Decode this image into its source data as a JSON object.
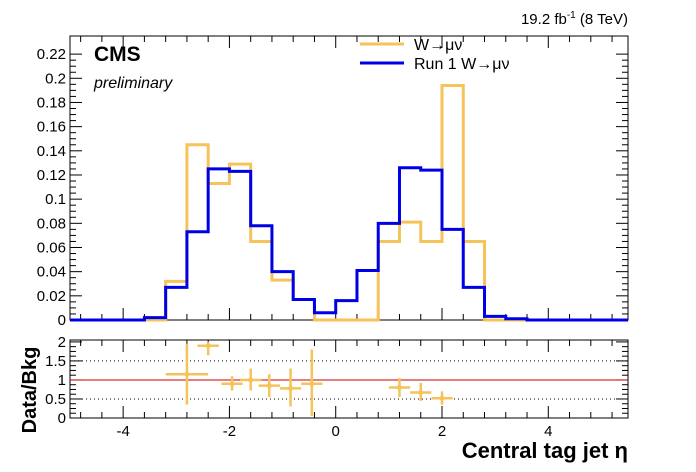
{
  "header": {
    "lumi_prefix": "19.2 fb",
    "lumi_exp": "-1",
    "lumi_suffix": " (8 TeV)",
    "experiment": "CMS",
    "status": "preliminary"
  },
  "colors": {
    "series_1": "#f5c35a",
    "series_2": "#0000e6",
    "ratio_line": "#cc0000"
  },
  "chart_data": [
    {
      "type": "line",
      "subtype": "step-histogram",
      "xlabel": "Central tag jet η",
      "ylabel": "",
      "xlim": [
        -5,
        5.5
      ],
      "ylim": [
        0,
        0.235
      ],
      "x_ticks": [
        -4,
        -2,
        0,
        2,
        4
      ],
      "y_ticks": [
        0,
        0.02,
        0.04,
        0.06,
        0.08,
        0.1,
        0.12,
        0.14,
        0.16,
        0.18,
        0.2,
        0.22
      ],
      "y_tick_labels": [
        "0",
        "0.02",
        "0.04",
        "0.06",
        "0.08",
        "0.1",
        "0.12",
        "0.14",
        "0.16",
        "0.18",
        "0.2",
        "0.22"
      ],
      "legend_position": "top-center",
      "bin_edges": [
        -5.0,
        -3.6,
        -3.2,
        -2.8,
        -2.4,
        -2.0,
        -1.6,
        -1.2,
        -0.8,
        -0.4,
        0.0,
        0.4,
        0.8,
        1.2,
        1.6,
        2.0,
        2.4,
        2.8,
        3.2,
        3.6,
        5.5
      ],
      "series": [
        {
          "name": "W→μν",
          "color": "#f5c35a",
          "values": [
            0,
            0,
            0.032,
            0.145,
            0.113,
            0.129,
            0.065,
            0.033,
            0.017,
            0,
            0,
            0,
            0.065,
            0.081,
            0.065,
            0.194,
            0.065,
            0,
            0,
            0
          ]
        },
        {
          "name": "Run 1 W→μν",
          "color": "#0000e6",
          "values": [
            0,
            0.002,
            0.027,
            0.073,
            0.125,
            0.123,
            0.078,
            0.04,
            0.017,
            0.006,
            0.016,
            0.041,
            0.08,
            0.126,
            0.124,
            0.075,
            0.027,
            0.003,
            0.001,
            0
          ]
        }
      ]
    },
    {
      "type": "scatter",
      "subtype": "ratio-with-error-bars",
      "ylabel": "Data/Bkg",
      "xlabel": "Central tag jet η",
      "xlim": [
        -5,
        5.5
      ],
      "ylim": [
        0,
        2.05
      ],
      "x_ticks": [
        -4,
        -2,
        0,
        2,
        4
      ],
      "y_ticks": [
        0,
        0.5,
        1,
        1.5,
        2
      ],
      "y_tick_labels": [
        "0",
        "0.5",
        "1",
        "1.5",
        "2"
      ],
      "reference_lines": [
        0.5,
        1,
        1.5
      ],
      "series": [
        {
          "name": "",
          "color": "#f5c35a",
          "points": [
            {
              "x": -2.8,
              "y": 1.15,
              "xerr": 0.4,
              "ylo": 0.35,
              "yhi": 1.95
            },
            {
              "x": -2.4,
              "y": 1.9,
              "xerr": 0.2,
              "ylo": 1.65,
              "yhi": 2.0
            },
            {
              "x": -1.95,
              "y": 0.9,
              "xerr": 0.2,
              "ylo": 0.72,
              "yhi": 1.1
            },
            {
              "x": -1.6,
              "y": 1.0,
              "xerr": 0.2,
              "ylo": 0.72,
              "yhi": 1.3
            },
            {
              "x": -1.25,
              "y": 0.85,
              "xerr": 0.2,
              "ylo": 0.55,
              "yhi": 1.15
            },
            {
              "x": -0.85,
              "y": 0.78,
              "xerr": 0.2,
              "ylo": 0.3,
              "yhi": 1.3
            },
            {
              "x": -0.45,
              "y": 0.9,
              "xerr": 0.2,
              "ylo": 0.05,
              "yhi": 1.8
            },
            {
              "x": 1.2,
              "y": 0.8,
              "xerr": 0.2,
              "ylo": 0.55,
              "yhi": 1.05
            },
            {
              "x": 1.6,
              "y": 0.67,
              "xerr": 0.2,
              "ylo": 0.45,
              "yhi": 0.92
            },
            {
              "x": 2.0,
              "y": 0.52,
              "xerr": 0.2,
              "ylo": 0.35,
              "yhi": 0.7
            }
          ]
        }
      ]
    }
  ]
}
